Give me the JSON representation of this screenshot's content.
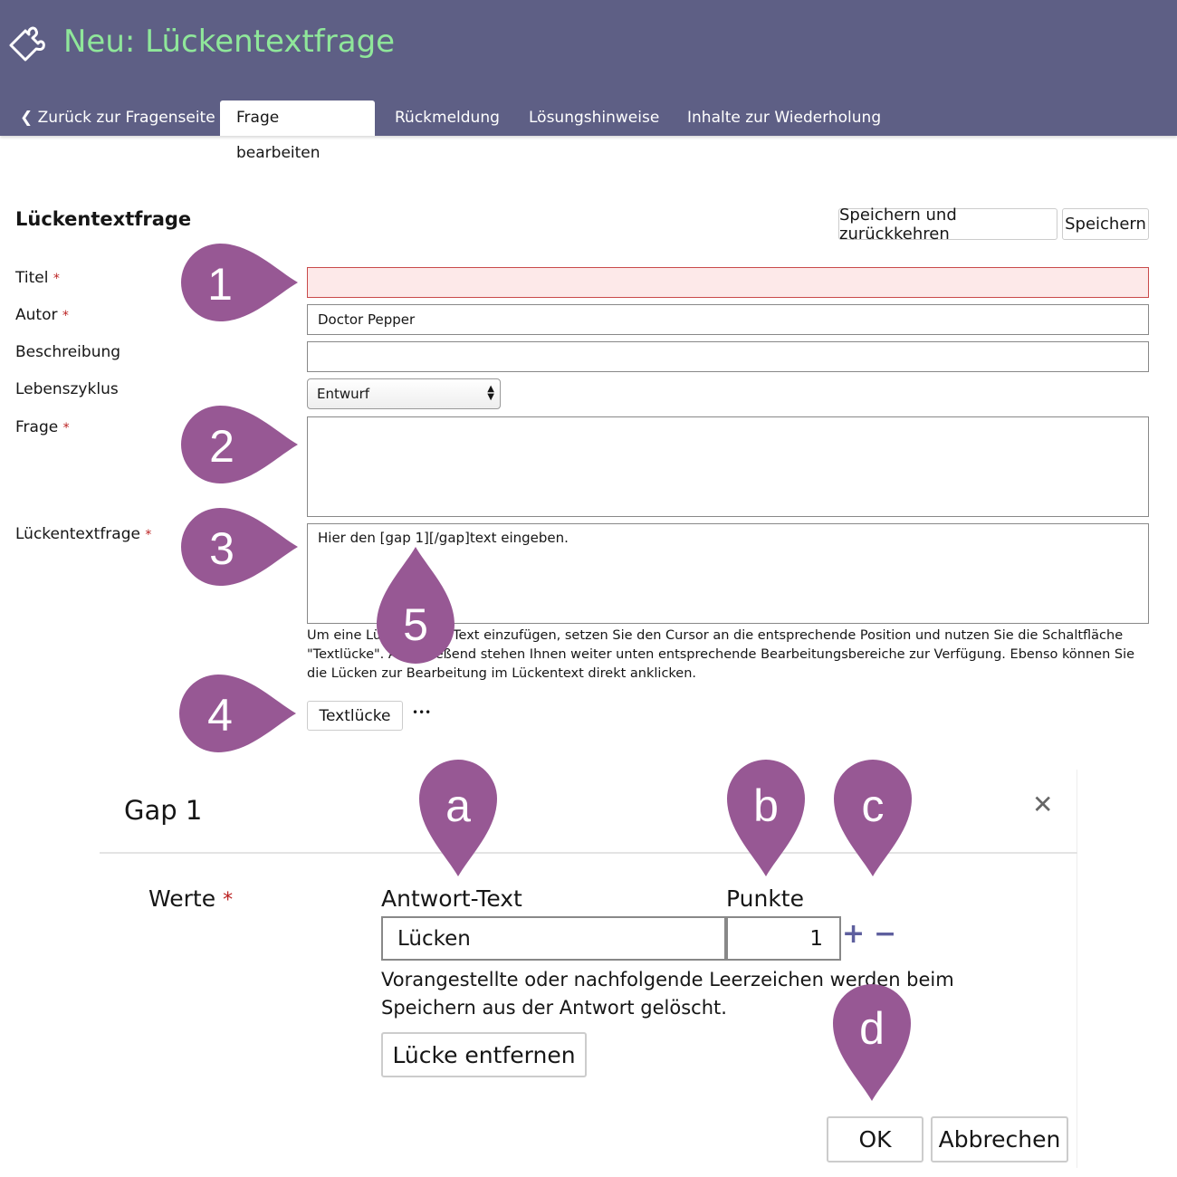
{
  "header": {
    "title": "Neu: Lückentextfrage",
    "icon": "puzzle-icon"
  },
  "tabs": [
    {
      "label": "Zurück zur Fragenseite"
    },
    {
      "label": "Frage bearbeiten",
      "active": true
    },
    {
      "label": "Rückmeldung"
    },
    {
      "label": "Lösungshinweise"
    },
    {
      "label": "Inhalte zur Wiederholung"
    }
  ],
  "form": {
    "heading": "Lückentextfrage",
    "save_return": "Speichern und zurückkehren",
    "save": "Speichern",
    "required_mark": "*",
    "title_label": "Titel",
    "title_value": "",
    "author_label": "Autor",
    "author_value": "Doctor Pepper",
    "desc_label": "Beschreibung",
    "desc_value": "",
    "lifecycle_label": "Lebenszyklus",
    "lifecycle_value": "Entwurf",
    "question_label": "Frage",
    "question_value": "",
    "cloze_label": "Lückentextfrage",
    "cloze_value": "Hier den [gap 1][/gap]text eingeben.",
    "help": "Um eine Lücke in den Text einzufügen, setzen Sie den Cursor an die entsprechende Position und nutzen Sie die Schaltfläche \"Textlücke\". Anschließend stehen Ihnen weiter unten entsprechende Bearbeitungsbereiche zur Verfügung. Ebenso können Sie die Lücken zur Bearbeitung im Lückentext direkt anklicken.",
    "gap_button": "Textlücke",
    "more": "•••"
  },
  "gap": {
    "title": "Gap 1",
    "values_label": "Werte",
    "answer_header": "Antwort-Text",
    "points_header": "Punkte",
    "answer_value": "Lücken",
    "points_value": "1",
    "note": "Vorangestellte oder nachfolgende Leerzeichen werden beim Speichern aus der Antwort gelöscht.",
    "remove": "Lücke entfernen",
    "ok": "OK",
    "cancel": "Abbrechen"
  },
  "markers": [
    "1",
    "2",
    "3",
    "4",
    "5",
    "a",
    "b",
    "c",
    "d"
  ],
  "colors": {
    "header": "#5e5f85",
    "title": "#8fe79a",
    "marker": "#975894",
    "error_bg": "#fde9e9",
    "error_border": "#c94a4a"
  }
}
